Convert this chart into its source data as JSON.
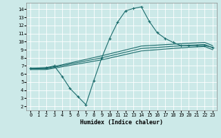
{
  "title": "",
  "xlabel": "Humidex (Indice chaleur)",
  "bg_color": "#cce9e8",
  "line_color": "#1a6b6b",
  "grid_color": "#ffffff",
  "xlim": [
    -0.5,
    23.5
  ],
  "ylim": [
    1.5,
    14.8
  ],
  "xticks": [
    0,
    1,
    2,
    3,
    4,
    5,
    6,
    7,
    8,
    9,
    10,
    11,
    12,
    13,
    14,
    15,
    16,
    17,
    18,
    19,
    20,
    21,
    22,
    23
  ],
  "yticks": [
    2,
    3,
    4,
    5,
    6,
    7,
    8,
    9,
    10,
    11,
    12,
    13,
    14
  ],
  "line_curved_x": [
    0,
    2,
    3,
    4,
    5,
    6,
    7,
    8,
    9,
    10,
    11,
    12,
    13,
    14,
    15,
    16,
    17,
    18,
    19,
    20,
    21,
    22,
    23
  ],
  "line_curved_y": [
    6.7,
    6.8,
    7.0,
    5.7,
    4.2,
    3.2,
    2.2,
    5.2,
    8.0,
    10.4,
    12.4,
    13.8,
    14.1,
    14.3,
    12.5,
    11.1,
    10.4,
    9.9,
    9.5,
    9.5,
    9.5,
    9.5,
    9.3
  ],
  "line_top_x": [
    0,
    2,
    9,
    14,
    20,
    22,
    23
  ],
  "line_top_y": [
    6.7,
    6.7,
    8.25,
    9.45,
    9.8,
    9.9,
    9.5
  ],
  "line_mid_x": [
    0,
    2,
    9,
    14,
    20,
    22,
    23
  ],
  "line_mid_y": [
    6.65,
    6.65,
    8.0,
    9.15,
    9.55,
    9.65,
    9.25
  ],
  "line_bot_x": [
    0,
    2,
    9,
    14,
    20,
    22,
    23
  ],
  "line_bot_y": [
    6.55,
    6.55,
    7.75,
    8.85,
    9.3,
    9.4,
    9.0
  ]
}
